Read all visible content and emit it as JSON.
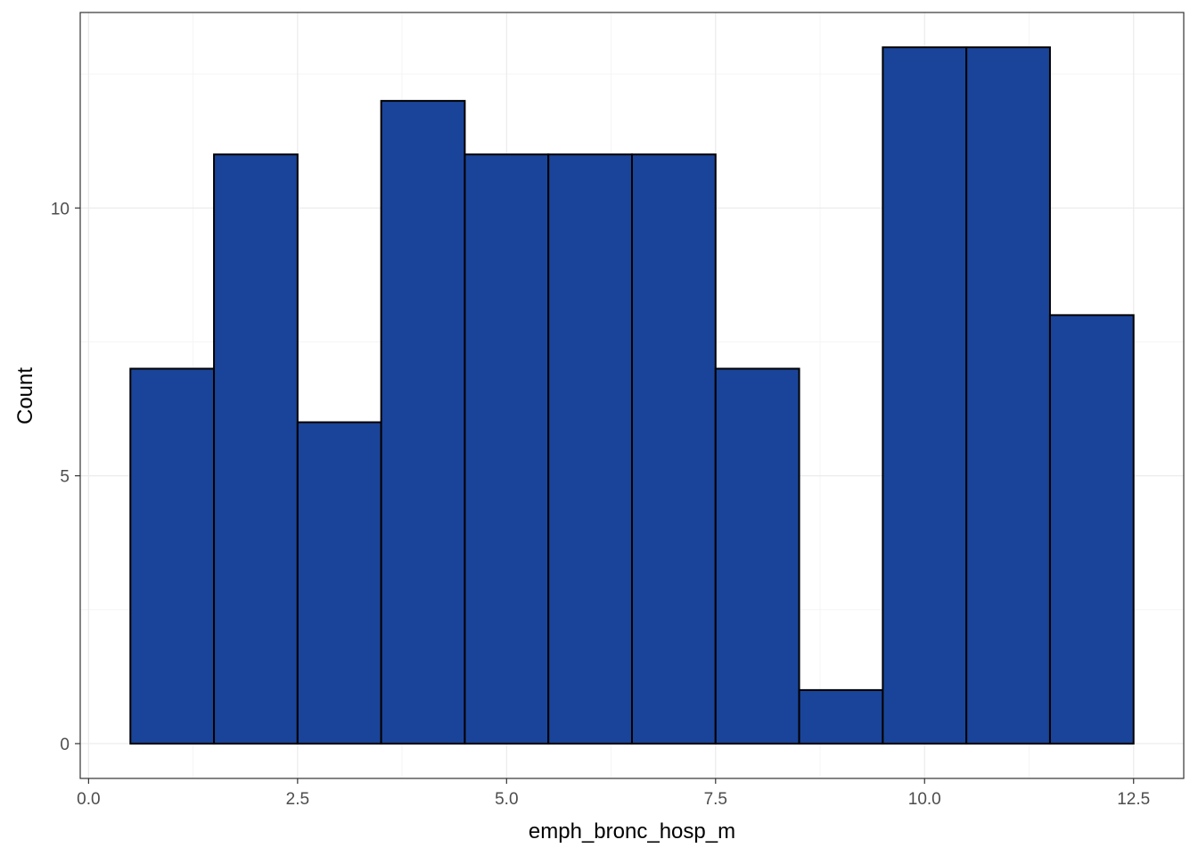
{
  "chart_data": {
    "type": "bar",
    "title": "",
    "xlabel": "emph_bronc_hosp_m",
    "ylabel": "Count",
    "bin_width": 1,
    "bins": [
      {
        "center": 1,
        "count": 7
      },
      {
        "center": 2,
        "count": 11
      },
      {
        "center": 3,
        "count": 6
      },
      {
        "center": 4,
        "count": 12
      },
      {
        "center": 5,
        "count": 11
      },
      {
        "center": 6,
        "count": 11
      },
      {
        "center": 7,
        "count": 11
      },
      {
        "center": 8,
        "count": 7
      },
      {
        "center": 9,
        "count": 1
      },
      {
        "center": 10,
        "count": 13
      },
      {
        "center": 11,
        "count": 13
      },
      {
        "center": 12,
        "count": 8
      }
    ],
    "xlim": [
      -0.1,
      13.1
    ],
    "ylim": [
      -0.65,
      13.65
    ],
    "x_ticks": [
      {
        "value": 0,
        "label": "0.0"
      },
      {
        "value": 2.5,
        "label": "2.5"
      },
      {
        "value": 5,
        "label": "5.0"
      },
      {
        "value": 7.5,
        "label": "7.5"
      },
      {
        "value": 10,
        "label": "10.0"
      },
      {
        "value": 12.5,
        "label": "12.5"
      }
    ],
    "y_ticks": [
      {
        "value": 0,
        "label": "0"
      },
      {
        "value": 5,
        "label": "5"
      },
      {
        "value": 10,
        "label": "10"
      }
    ],
    "grid": true,
    "legend": "none",
    "colors": {
      "bar_fill": "#1a4499",
      "bar_outline": "#000000",
      "panel_border": "#333333",
      "grid_major": "#ebebeb",
      "grid_minor": "#f5f5f5"
    }
  }
}
